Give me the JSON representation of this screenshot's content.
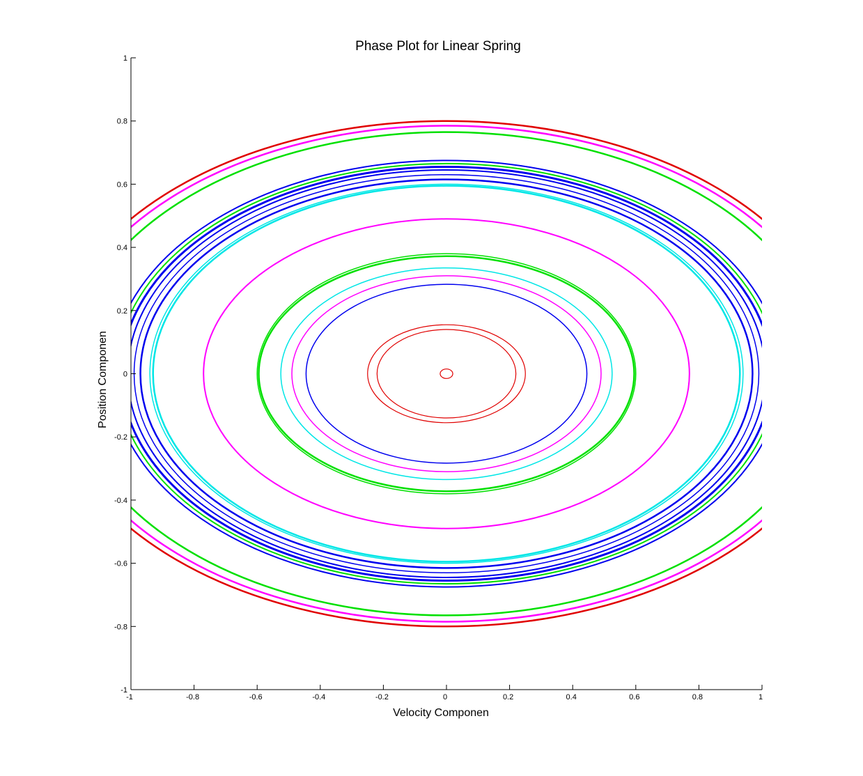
{
  "chart_data": {
    "type": "line",
    "title": "Phase Plot for Linear Spring",
    "xlabel": "Velocity Componen",
    "ylabel": "Position Componen",
    "xlim": [
      -1,
      1
    ],
    "ylim": [
      -1,
      1
    ],
    "xticks": [
      "-1",
      "-0.8",
      "-0.6",
      "-0.4",
      "-0.2",
      "0",
      "0.2",
      "0.4",
      "0.6",
      "0.8",
      "1"
    ],
    "yticks": [
      "-1",
      "-0.8",
      "-0.6",
      "-0.4",
      "-0.2",
      "0",
      "0.2",
      "0.4",
      "0.6",
      "0.8",
      "1"
    ],
    "grid": false,
    "legend": "none",
    "colors": {
      "red": "#e00000",
      "magenta": "#ff00ff",
      "green": "#00e000",
      "blue": "#0000ee",
      "cyan": "#00e6e6"
    },
    "series": [
      {
        "color": "#e00000",
        "rx": 0.02,
        "ry": 0.015,
        "width": 1.2
      },
      {
        "color": "#e00000",
        "rx": 0.22,
        "ry": 0.14,
        "width": 1.2
      },
      {
        "color": "#e00000",
        "rx": 0.25,
        "ry": 0.155,
        "width": 1.2
      },
      {
        "color": "#0000ee",
        "rx": 0.445,
        "ry": 0.283,
        "width": 1.5
      },
      {
        "color": "#ff00ff",
        "rx": 0.49,
        "ry": 0.31,
        "width": 1.5
      },
      {
        "color": "#00e6e6",
        "rx": 0.525,
        "ry": 0.335,
        "width": 1.5
      },
      {
        "color": "#00e000",
        "rx": 0.595,
        "ry": 0.372,
        "width": 2.5
      },
      {
        "color": "#00e000",
        "rx": 0.6,
        "ry": 0.38,
        "width": 1.5
      },
      {
        "color": "#ff00ff",
        "rx": 0.77,
        "ry": 0.49,
        "width": 2.0
      },
      {
        "color": "#00e6e6",
        "rx": 0.93,
        "ry": 0.595,
        "width": 2.5
      },
      {
        "color": "#00e6e6",
        "rx": 0.94,
        "ry": 0.6,
        "width": 1.5
      },
      {
        "color": "#0000ee",
        "rx": 0.97,
        "ry": 0.615,
        "width": 2.5
      },
      {
        "color": "#0000ee",
        "rx": 0.99,
        "ry": 0.63,
        "width": 1.5
      },
      {
        "color": "#0000ee",
        "rx": 1.01,
        "ry": 0.645,
        "width": 2.0
      },
      {
        "color": "#0000ee",
        "rx": 1.03,
        "ry": 0.655,
        "width": 3.0
      },
      {
        "color": "#00e000",
        "rx": 1.045,
        "ry": 0.665,
        "width": 2.0
      },
      {
        "color": "#0000ee",
        "rx": 1.06,
        "ry": 0.675,
        "width": 2.0
      },
      {
        "color": "#00e000",
        "rx": 1.2,
        "ry": 0.765,
        "width": 2.5
      },
      {
        "color": "#ff00ff",
        "rx": 1.24,
        "ry": 0.785,
        "width": 2.5
      },
      {
        "color": "#e00000",
        "rx": 1.265,
        "ry": 0.8,
        "width": 2.5
      }
    ]
  }
}
